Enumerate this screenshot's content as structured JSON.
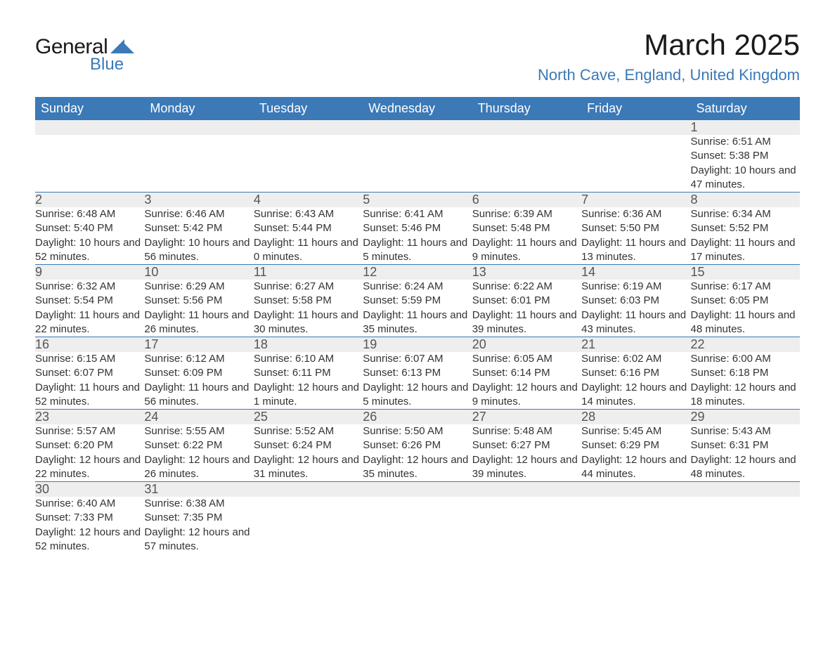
{
  "logo": {
    "text_general": "General",
    "text_blue": "Blue",
    "shape_color": "#3b79b7"
  },
  "title": "March 2025",
  "location": "North Cave, England, United Kingdom",
  "theme": {
    "header_bg": "#3b79b7",
    "header_fg": "#ffffff",
    "daynum_bg": "#eeeeee",
    "row_border": "#3b79b7",
    "text_color": "#333333",
    "title_color": "#1a1a1a",
    "location_color": "#3b79b7",
    "title_fontsize": 42,
    "location_fontsize": 22,
    "header_fontsize": 18,
    "body_fontsize": 15
  },
  "weekdays": [
    "Sunday",
    "Monday",
    "Tuesday",
    "Wednesday",
    "Thursday",
    "Friday",
    "Saturday"
  ],
  "weeks": [
    [
      null,
      null,
      null,
      null,
      null,
      null,
      {
        "n": "1",
        "sunrise": "Sunrise: 6:51 AM",
        "sunset": "Sunset: 5:38 PM",
        "daylight": "Daylight: 10 hours and 47 minutes."
      }
    ],
    [
      {
        "n": "2",
        "sunrise": "Sunrise: 6:48 AM",
        "sunset": "Sunset: 5:40 PM",
        "daylight": "Daylight: 10 hours and 52 minutes."
      },
      {
        "n": "3",
        "sunrise": "Sunrise: 6:46 AM",
        "sunset": "Sunset: 5:42 PM",
        "daylight": "Daylight: 10 hours and 56 minutes."
      },
      {
        "n": "4",
        "sunrise": "Sunrise: 6:43 AM",
        "sunset": "Sunset: 5:44 PM",
        "daylight": "Daylight: 11 hours and 0 minutes."
      },
      {
        "n": "5",
        "sunrise": "Sunrise: 6:41 AM",
        "sunset": "Sunset: 5:46 PM",
        "daylight": "Daylight: 11 hours and 5 minutes."
      },
      {
        "n": "6",
        "sunrise": "Sunrise: 6:39 AM",
        "sunset": "Sunset: 5:48 PM",
        "daylight": "Daylight: 11 hours and 9 minutes."
      },
      {
        "n": "7",
        "sunrise": "Sunrise: 6:36 AM",
        "sunset": "Sunset: 5:50 PM",
        "daylight": "Daylight: 11 hours and 13 minutes."
      },
      {
        "n": "8",
        "sunrise": "Sunrise: 6:34 AM",
        "sunset": "Sunset: 5:52 PM",
        "daylight": "Daylight: 11 hours and 17 minutes."
      }
    ],
    [
      {
        "n": "9",
        "sunrise": "Sunrise: 6:32 AM",
        "sunset": "Sunset: 5:54 PM",
        "daylight": "Daylight: 11 hours and 22 minutes."
      },
      {
        "n": "10",
        "sunrise": "Sunrise: 6:29 AM",
        "sunset": "Sunset: 5:56 PM",
        "daylight": "Daylight: 11 hours and 26 minutes."
      },
      {
        "n": "11",
        "sunrise": "Sunrise: 6:27 AM",
        "sunset": "Sunset: 5:58 PM",
        "daylight": "Daylight: 11 hours and 30 minutes."
      },
      {
        "n": "12",
        "sunrise": "Sunrise: 6:24 AM",
        "sunset": "Sunset: 5:59 PM",
        "daylight": "Daylight: 11 hours and 35 minutes."
      },
      {
        "n": "13",
        "sunrise": "Sunrise: 6:22 AM",
        "sunset": "Sunset: 6:01 PM",
        "daylight": "Daylight: 11 hours and 39 minutes."
      },
      {
        "n": "14",
        "sunrise": "Sunrise: 6:19 AM",
        "sunset": "Sunset: 6:03 PM",
        "daylight": "Daylight: 11 hours and 43 minutes."
      },
      {
        "n": "15",
        "sunrise": "Sunrise: 6:17 AM",
        "sunset": "Sunset: 6:05 PM",
        "daylight": "Daylight: 11 hours and 48 minutes."
      }
    ],
    [
      {
        "n": "16",
        "sunrise": "Sunrise: 6:15 AM",
        "sunset": "Sunset: 6:07 PM",
        "daylight": "Daylight: 11 hours and 52 minutes."
      },
      {
        "n": "17",
        "sunrise": "Sunrise: 6:12 AM",
        "sunset": "Sunset: 6:09 PM",
        "daylight": "Daylight: 11 hours and 56 minutes."
      },
      {
        "n": "18",
        "sunrise": "Sunrise: 6:10 AM",
        "sunset": "Sunset: 6:11 PM",
        "daylight": "Daylight: 12 hours and 1 minute."
      },
      {
        "n": "19",
        "sunrise": "Sunrise: 6:07 AM",
        "sunset": "Sunset: 6:13 PM",
        "daylight": "Daylight: 12 hours and 5 minutes."
      },
      {
        "n": "20",
        "sunrise": "Sunrise: 6:05 AM",
        "sunset": "Sunset: 6:14 PM",
        "daylight": "Daylight: 12 hours and 9 minutes."
      },
      {
        "n": "21",
        "sunrise": "Sunrise: 6:02 AM",
        "sunset": "Sunset: 6:16 PM",
        "daylight": "Daylight: 12 hours and 14 minutes."
      },
      {
        "n": "22",
        "sunrise": "Sunrise: 6:00 AM",
        "sunset": "Sunset: 6:18 PM",
        "daylight": "Daylight: 12 hours and 18 minutes."
      }
    ],
    [
      {
        "n": "23",
        "sunrise": "Sunrise: 5:57 AM",
        "sunset": "Sunset: 6:20 PM",
        "daylight": "Daylight: 12 hours and 22 minutes."
      },
      {
        "n": "24",
        "sunrise": "Sunrise: 5:55 AM",
        "sunset": "Sunset: 6:22 PM",
        "daylight": "Daylight: 12 hours and 26 minutes."
      },
      {
        "n": "25",
        "sunrise": "Sunrise: 5:52 AM",
        "sunset": "Sunset: 6:24 PM",
        "daylight": "Daylight: 12 hours and 31 minutes."
      },
      {
        "n": "26",
        "sunrise": "Sunrise: 5:50 AM",
        "sunset": "Sunset: 6:26 PM",
        "daylight": "Daylight: 12 hours and 35 minutes."
      },
      {
        "n": "27",
        "sunrise": "Sunrise: 5:48 AM",
        "sunset": "Sunset: 6:27 PM",
        "daylight": "Daylight: 12 hours and 39 minutes."
      },
      {
        "n": "28",
        "sunrise": "Sunrise: 5:45 AM",
        "sunset": "Sunset: 6:29 PM",
        "daylight": "Daylight: 12 hours and 44 minutes."
      },
      {
        "n": "29",
        "sunrise": "Sunrise: 5:43 AM",
        "sunset": "Sunset: 6:31 PM",
        "daylight": "Daylight: 12 hours and 48 minutes."
      }
    ],
    [
      {
        "n": "30",
        "sunrise": "Sunrise: 6:40 AM",
        "sunset": "Sunset: 7:33 PM",
        "daylight": "Daylight: 12 hours and 52 minutes."
      },
      {
        "n": "31",
        "sunrise": "Sunrise: 6:38 AM",
        "sunset": "Sunset: 7:35 PM",
        "daylight": "Daylight: 12 hours and 57 minutes."
      },
      null,
      null,
      null,
      null,
      null
    ]
  ]
}
